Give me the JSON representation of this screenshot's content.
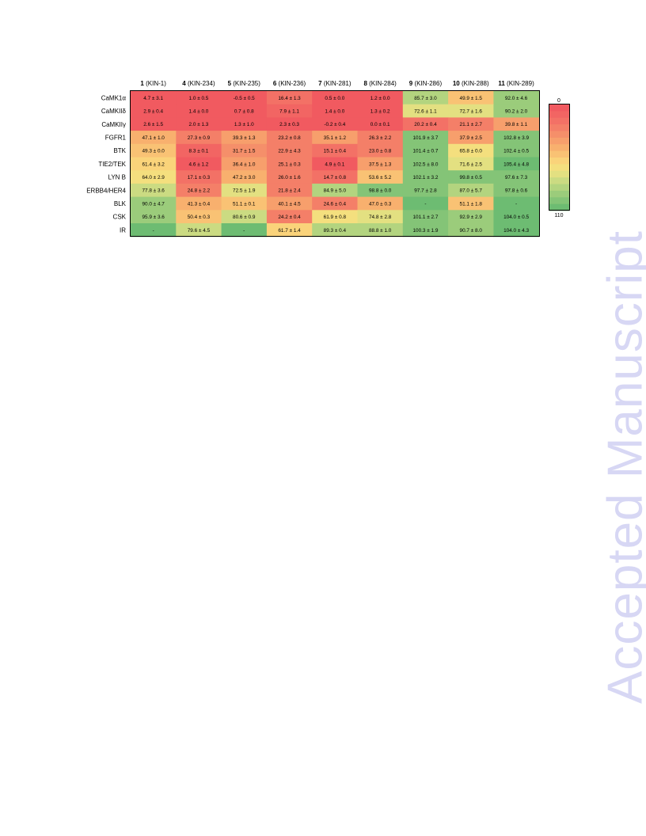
{
  "watermark": "Accepted Manuscript",
  "chart_data": {
    "type": "heatmap",
    "columns": [
      {
        "num": "1",
        "code": "(KIN-1)"
      },
      {
        "num": "4",
        "code": "(KIN-234)"
      },
      {
        "num": "5",
        "code": "(KIN-235)"
      },
      {
        "num": "6",
        "code": "(KIN-236)"
      },
      {
        "num": "7",
        "code": "(KIN-281)"
      },
      {
        "num": "8",
        "code": "(KIN-284)"
      },
      {
        "num": "9",
        "code": "(KIN-286)"
      },
      {
        "num": "10",
        "code": "(KIN-288)"
      },
      {
        "num": "11",
        "code": "(KIN-289)"
      }
    ],
    "rows": [
      "CaMK1α",
      "CaMKIIδ",
      "CaMKIIγ",
      "FGFR1",
      "BTK",
      "TIE2/TEK",
      "LYN B",
      "ERBB4/HER4",
      "BLK",
      "CSK",
      "IR"
    ],
    "values": [
      [
        4.7,
        1.0,
        -0.5,
        16.4,
        0.5,
        1.2,
        85.7,
        49.9,
        92.0
      ],
      [
        2.9,
        1.4,
        0.7,
        7.9,
        1.4,
        1.3,
        72.6,
        72.7,
        90.2
      ],
      [
        2.6,
        2.0,
        1.3,
        2.3,
        -0.2,
        0.0,
        20.2,
        21.1,
        39.8
      ],
      [
        47.1,
        27.3,
        39.3,
        23.2,
        35.1,
        26.3,
        101.9,
        37.9,
        102.8
      ],
      [
        49.3,
        8.3,
        31.7,
        22.9,
        15.1,
        23.0,
        101.4,
        65.8,
        102.4
      ],
      [
        61.4,
        4.6,
        36.4,
        25.1,
        4.9,
        37.5,
        102.5,
        71.6,
        105.4
      ],
      [
        64.0,
        17.1,
        47.2,
        26.0,
        14.7,
        53.6,
        102.1,
        99.8,
        97.6
      ],
      [
        77.8,
        24.8,
        72.5,
        21.8,
        84.9,
        98.8,
        97.7,
        87.0,
        97.8
      ],
      [
        90.0,
        41.3,
        51.1,
        40.1,
        24.6,
        47.0,
        null,
        51.1,
        null
      ],
      [
        95.9,
        50.4,
        80.6,
        24.2,
        61.9,
        74.8,
        101.1,
        92.9,
        104.0
      ],
      [
        null,
        79.6,
        null,
        61.7,
        89.3,
        88.8,
        100.3,
        90.7,
        104.0
      ]
    ],
    "cell_labels": [
      [
        "4.7 ± 3.1",
        "1.0 ± 0.5",
        "-0.5 ± 0.5",
        "16.4 ± 1.3",
        "0.5 ± 0.0",
        "1.2 ± 0.0",
        "85.7 ± 3.0",
        "49.9 ± 1.5",
        "92.0 ± 4.6"
      ],
      [
        "2.9 ± 0.4",
        "1.4 ± 0.0",
        "0.7 ± 0.8",
        "7.9 ± 1.1",
        "1.4 ± 0.0",
        "1.3 ± 0.2",
        "72.6 ± 1.1",
        "72.7 ± 1.6",
        "90.2 ± 2.0"
      ],
      [
        "2.6 ± 1.5",
        "2.0 ± 1.3",
        "1.3 ± 1.0",
        "2.3 ± 0.3",
        "-0.2 ± 0.4",
        "0.0 ± 0.1",
        "20.2 ± 0.4",
        "21.1 ± 2.7",
        "39.8 ± 1.1"
      ],
      [
        "47.1 ± 1.0",
        "27.3 ± 0.9",
        "39.3 ± 1.3",
        "23.2 ± 0.8",
        "35.1 ± 1.2",
        "26.3 ± 2.2",
        "101.9 ± 3.7",
        "37.9 ± 2.5",
        "102.8 ± 3.9"
      ],
      [
        "49.3 ± 0.0",
        "8.3 ± 0.1",
        "31.7 ± 1.5",
        "22.9 ± 4.3",
        "15.1 ± 0.4",
        "23.0 ± 0.8",
        "101.4 ± 0.7",
        "65.8 ± 0.0",
        "102.4 ± 0.5"
      ],
      [
        "61.4 ± 3.2",
        "4.6 ± 1.2",
        "36.4 ± 1.0",
        "25.1 ± 0.3",
        "4.9 ± 0.1",
        "37.5 ± 1.3",
        "102.5 ± 8.0",
        "71.6 ± 2.5",
        "105.4 ± 4.8"
      ],
      [
        "64.0 ± 2.9",
        "17.1 ± 0.3",
        "47.2 ± 3.0",
        "26.0 ± 1.6",
        "14.7 ± 0.8",
        "53.6 ± 5.2",
        "102.1 ± 3.2",
        "99.8 ± 0.5",
        "97.6 ± 7.3"
      ],
      [
        "77.8 ± 3.6",
        "24.8 ± 2.2",
        "72.5 ± 1.9",
        "21.8 ± 2.4",
        "84.9 ± 5.0",
        "98.8 ± 0.0",
        "97.7 ± 2.8",
        "87.0 ± 5.7",
        "97.8 ± 0.6"
      ],
      [
        "90.0 ± 4.7",
        "41.3 ± 0.4",
        "51.1 ± 0.1",
        "40.1 ± 4.5",
        "24.6 ± 0.4",
        "47.0 ± 0.3",
        "-",
        "51.1 ± 1.8",
        "-"
      ],
      [
        "95.9 ± 3.6",
        "50.4 ± 0.3",
        "80.6 ± 0.9",
        "24.2 ± 0.4",
        "61.9 ± 0.8",
        "74.8 ± 2.8",
        "101.1 ± 2.7",
        "92.9 ± 2.9",
        "104.0 ± 0.5"
      ],
      [
        "-",
        "79.6 ± 4.5",
        "-",
        "61.7 ± 1.4",
        "89.3 ± 0.4",
        "88.8 ± 1.0",
        "100.3 ± 1.9",
        "90.7 ± 8.0",
        "104.0 ± 4.3"
      ]
    ],
    "missing_value_fill": 110,
    "color_scale": {
      "min": 0,
      "max": 110,
      "min_label": "0",
      "max_label": "110",
      "steps": 16,
      "colors": [
        "#f15a60",
        "#f26563",
        "#f37166",
        "#f47f68",
        "#f58f6a",
        "#f79f6c",
        "#f8b06e",
        "#f9c274",
        "#fad37a",
        "#f4df7e",
        "#e3e081",
        "#cbdb82",
        "#b3d47f",
        "#9bcc7b",
        "#84c477",
        "#6dbc72"
      ]
    },
    "legend_placement": "right"
  }
}
